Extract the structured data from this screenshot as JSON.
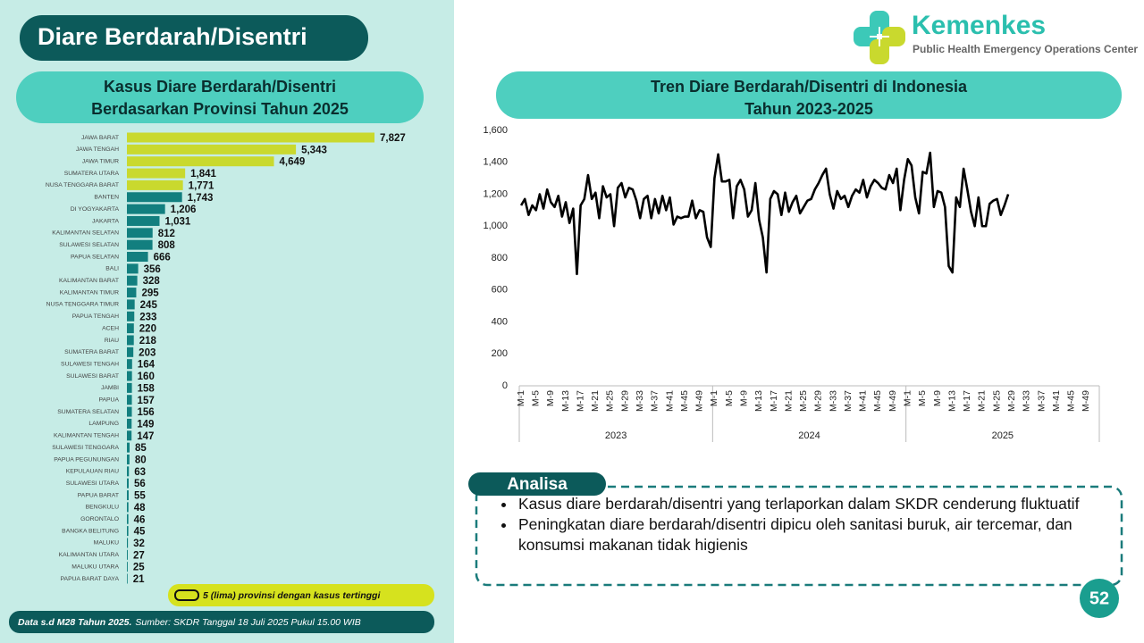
{
  "header": {
    "title": "Diare Berdarah/Disentri"
  },
  "logo": {
    "name": "Kemenkes",
    "subtitle": "Public Health Emergency Operations Center"
  },
  "chart_data": [
    {
      "type": "bar",
      "orientation": "horizontal",
      "title": [
        "Kasus Diare Berdarah/Disentri",
        "Berdasarkan Provinsi Tahun 2025"
      ],
      "categories": [
        "JAWA BARAT",
        "JAWA TENGAH",
        "JAWA TIMUR",
        "SUMATERA UTARA",
        "NUSA TENGGARA BARAT",
        "BANTEN",
        "DI YOGYAKARTA",
        "JAKARTA",
        "KALIMANTAN SELATAN",
        "SULAWESI SELATAN",
        "PAPUA SELATAN",
        "BALI",
        "KALIMANTAN BARAT",
        "KALIMANTAN TIMUR",
        "NUSA TENGGARA TIMUR",
        "PAPUA TENGAH",
        "ACEH",
        "RIAU",
        "SUMATERA BARAT",
        "SULAWESI TENGAH",
        "SULAWESI BARAT",
        "JAMBI",
        "PAPUA",
        "SUMATERA SELATAN",
        "LAMPUNG",
        "KALIMANTAN TENGAH",
        "SULAWESI TENGGARA",
        "PAPUA PEGUNUNGAN",
        "KEPULAUAN RIAU",
        "SULAWESI UTARA",
        "PAPUA BARAT",
        "BENGKULU",
        "GORONTALO",
        "BANGKA BELITUNG",
        "MALUKU",
        "KALIMANTAN UTARA",
        "MALUKU UTARA",
        "PAPUA BARAT DAYA"
      ],
      "values": [
        7827,
        5343,
        4649,
        1841,
        1771,
        1743,
        1206,
        1031,
        812,
        808,
        666,
        356,
        328,
        295,
        245,
        233,
        220,
        218,
        203,
        164,
        160,
        158,
        157,
        156,
        149,
        147,
        85,
        80,
        63,
        56,
        55,
        48,
        46,
        45,
        32,
        27,
        25,
        21
      ],
      "value_labels": [
        "7,827",
        "5,343",
        "4,649",
        "1,841",
        "1,771",
        "1,743",
        "1,206",
        "1,031",
        "812",
        "808",
        "666",
        "356",
        "328",
        "295",
        "245",
        "233",
        "220",
        "218",
        "203",
        "164",
        "160",
        "158",
        "157",
        "156",
        "149",
        "147",
        "85",
        "80",
        "63",
        "56",
        "55",
        "48",
        "46",
        "45",
        "32",
        "27",
        "25",
        "21"
      ],
      "colors": [
        "#c9d92e",
        "#c9d92e",
        "#c9d92e",
        "#c9d92e",
        "#c9d92e",
        "#127f7f",
        "#127f7f",
        "#127f7f",
        "#127f7f",
        "#127f7f",
        "#127f7f",
        "#127f7f",
        "#127f7f",
        "#127f7f",
        "#127f7f",
        "#127f7f",
        "#127f7f",
        "#127f7f",
        "#127f7f",
        "#127f7f",
        "#127f7f",
        "#127f7f",
        "#127f7f",
        "#127f7f",
        "#127f7f",
        "#127f7f",
        "#127f7f",
        "#127f7f",
        "#127f7f",
        "#127f7f",
        "#127f7f",
        "#127f7f",
        "#127f7f",
        "#127f7f",
        "#127f7f",
        "#127f7f",
        "#127f7f",
        "#127f7f"
      ],
      "note": "5 (lima) provinsi dengan kasus tertinggi"
    },
    {
      "type": "line",
      "title": [
        "Tren Diare Berdarah/Disentri di Indonesia",
        "Tahun 2023-2025"
      ],
      "color": "#000000",
      "ylim": [
        0,
        1600
      ],
      "yticks": [
        0,
        200,
        400,
        600,
        800,
        {
          "value": 1000,
          "label": "1,000"
        },
        {
          "value": 1200,
          "label": "1,200"
        },
        {
          "value": 1400,
          "label": "1,400"
        },
        {
          "value": 1600,
          "label": "1,600"
        }
      ],
      "grid": false,
      "groups": [
        {
          "label": "2023",
          "categories": [
            "M-1",
            null,
            null,
            null,
            "M-5",
            null,
            null,
            null,
            "M-9",
            null,
            null,
            null,
            "M-13",
            null,
            null,
            null,
            "M-17",
            null,
            null,
            null,
            "M-21",
            null,
            null,
            null,
            "M-25",
            null,
            null,
            null,
            "M-29",
            null,
            null,
            null,
            "M-33",
            null,
            null,
            null,
            "M-37",
            null,
            null,
            null,
            "M-41",
            null,
            null,
            null,
            "M-45",
            null,
            null,
            null,
            "M-49",
            null,
            null,
            null
          ],
          "values": [
            1130,
            1170,
            1070,
            1130,
            1100,
            1200,
            1110,
            1230,
            1150,
            1120,
            1190,
            1060,
            1150,
            1020,
            1110,
            700,
            1130,
            1170,
            1320,
            1170,
            1210,
            1050,
            1250,
            1180,
            1200,
            1000,
            1240,
            1270,
            1180,
            1240,
            1230,
            1160,
            1050,
            1170,
            1190,
            1050,
            1170,
            1080,
            1190,
            1100,
            1180,
            1010,
            1060,
            1050,
            1060,
            1060,
            1160,
            1050,
            1100,
            1090,
            930,
            870
          ]
        },
        {
          "label": "2024",
          "categories": [
            "M-1",
            null,
            null,
            null,
            "M-5",
            null,
            null,
            null,
            "M-9",
            null,
            null,
            null,
            "M-13",
            null,
            null,
            null,
            "M-17",
            null,
            null,
            null,
            "M-21",
            null,
            null,
            null,
            "M-25",
            null,
            null,
            null,
            "M-29",
            null,
            null,
            null,
            "M-33",
            null,
            null,
            null,
            "M-37",
            null,
            null,
            null,
            "M-41",
            null,
            null,
            null,
            "M-45",
            null,
            null,
            null,
            "M-49",
            null,
            null,
            null
          ],
          "values": [
            1300,
            1450,
            1280,
            1280,
            1290,
            1050,
            1250,
            1290,
            1230,
            1060,
            1100,
            1270,
            1040,
            930,
            710,
            1170,
            1220,
            1200,
            1070,
            1210,
            1090,
            1150,
            1190,
            1080,
            1120,
            1160,
            1170,
            1230,
            1270,
            1320,
            1360,
            1200,
            1110,
            1220,
            1170,
            1190,
            1120,
            1190,
            1230,
            1210,
            1290,
            1180,
            1250,
            1290,
            1270,
            1240,
            1230,
            1320,
            1270,
            1360,
            1100,
            1290
          ]
        },
        {
          "label": "2025",
          "categories": [
            "M-1",
            null,
            null,
            null,
            "M-5",
            null,
            null,
            null,
            "M-9",
            null,
            null,
            null,
            "M-13",
            null,
            null,
            null,
            "M-17",
            null,
            null,
            null,
            "M-21",
            null,
            null,
            null,
            "M-25",
            null,
            null,
            null,
            "M-29",
            null,
            null,
            null,
            "M-33",
            null,
            null,
            null,
            "M-37",
            null,
            null,
            null,
            "M-41",
            null,
            null,
            null,
            "M-45",
            null,
            null,
            null,
            "M-49",
            null,
            null,
            null
          ],
          "values": [
            1420,
            1380,
            1180,
            1080,
            1340,
            1330,
            1460,
            1120,
            1220,
            1210,
            1120,
            750,
            710,
            1180,
            1120,
            1360,
            1230,
            1090,
            1000,
            1180,
            1000,
            1000,
            1140,
            1160,
            1170,
            1070,
            1130,
            1200,
            null,
            null,
            null,
            null,
            null,
            null,
            null,
            null,
            null,
            null,
            null,
            null,
            null,
            null,
            null,
            null,
            null,
            null,
            null,
            null,
            null,
            null,
            null,
            null
          ]
        }
      ]
    }
  ],
  "analysis": {
    "title": "Analisa",
    "bullets": [
      "Kasus diare berdarah/disentri yang terlaporkan dalam SKDR cenderung fluktuatif",
      "Peningkatan diare berdarah/disentri dipicu oleh sanitasi buruk, air tercemar, dan konsumsi makanan tidak higienis"
    ]
  },
  "footer": {
    "bold": "Data s.d M28 Tahun 2025.",
    "text": "Sumber: SKDR Tanggal 18 Juli 2025 Pukul 15.00 WIB"
  },
  "page_number": "52"
}
